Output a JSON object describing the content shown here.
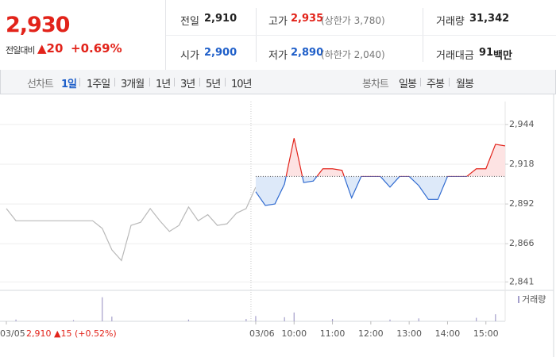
{
  "header": {
    "price": "2,930",
    "change_label": "전일대비",
    "change": "▲20",
    "change_rate": "+0.69%",
    "info": [
      {
        "label": "전일",
        "value": "2,910"
      },
      {
        "label": "고가",
        "value": "2,935",
        "note": "(상한가 3,780)"
      },
      {
        "label": "거래량",
        "value": "31,342"
      },
      {
        "label": "시가",
        "value": "2,900"
      },
      {
        "label": "저가",
        "value": "2,890",
        "note": "(하한가 2,040)"
      },
      {
        "label": "거래대금",
        "value": "91",
        "unit": "백만"
      }
    ]
  },
  "toolbar": {
    "line_label": "선차트",
    "periods": [
      "1일",
      "1주일",
      "3개월",
      "1년",
      "3년",
      "5년",
      "10년"
    ],
    "candle_label": "봉차트",
    "candles": [
      "일봉",
      "주봉",
      "월봉"
    ]
  },
  "chart_data": {
    "type": "line",
    "ylim": [
      2836,
      2959
    ],
    "yticks": [
      {
        "value": 2944,
        "label": "2,944"
      },
      {
        "value": 2918,
        "label": "2,918"
      },
      {
        "value": 2892,
        "label": "2,892"
      },
      {
        "value": 2866,
        "label": "2,866"
      },
      {
        "value": 2841,
        "label": "2,841"
      }
    ],
    "xticks": [
      {
        "value": "03/05 09:00",
        "label": "03/05"
      },
      {
        "value": "03/06 09:00",
        "label": "03/06"
      },
      {
        "value": "03/06 10:00",
        "label": "10:00"
      },
      {
        "value": "03/06 11:00",
        "label": "11:00"
      },
      {
        "value": "03/06 12:00",
        "label": "12:00"
      },
      {
        "value": "03/06 13:00",
        "label": "13:00"
      },
      {
        "value": "03/06 14:00",
        "label": "14:00"
      },
      {
        "value": "03/06 15:00",
        "label": "15:00"
      }
    ],
    "grid": true,
    "baseline": 2910,
    "annotation": "2,910 ▲15 (+0.52%)",
    "series": [
      {
        "color": "#b9b9b9",
        "x": [
          "03/05 09:00",
          "03/05 09:15",
          "03/05 09:30",
          "03/05 09:45",
          "03/05 10:00",
          "03/05 10:15",
          "03/05 10:30",
          "03/05 10:45",
          "03/05 11:00",
          "03/05 11:15",
          "03/05 11:30",
          "03/05 11:45",
          "03/05 12:00",
          "03/05 12:15",
          "03/05 12:30",
          "03/05 12:45",
          "03/05 13:00",
          "03/05 13:15",
          "03/05 13:30",
          "03/05 13:45",
          "03/05 14:00",
          "03/05 14:15",
          "03/05 14:30",
          "03/05 14:45",
          "03/05 15:00",
          "03/05 15:15",
          "03/05 15:30"
        ],
        "values": [
          2889,
          2881,
          2881,
          2881,
          2881,
          2881,
          2881,
          2881,
          2881,
          2881,
          2876,
          2862,
          2855,
          2878,
          2880,
          2889,
          2881,
          2874,
          2878,
          2890,
          2881,
          2885,
          2878,
          2879,
          2886,
          2889,
          2903
        ]
      },
      {
        "up_color": "#e2231a",
        "down_color": "#2f6ad0",
        "up_fill": "#fde3e3",
        "down_fill": "#dde9f9",
        "x": [
          "03/06 09:00",
          "03/06 09:15",
          "03/06 09:30",
          "03/06 09:45",
          "03/06 10:00",
          "03/06 10:15",
          "03/06 10:30",
          "03/06 10:45",
          "03/06 11:00",
          "03/06 11:15",
          "03/06 11:30",
          "03/06 11:45",
          "03/06 12:00",
          "03/06 12:15",
          "03/06 12:30",
          "03/06 12:45",
          "03/06 13:00",
          "03/06 13:15",
          "03/06 13:30",
          "03/06 13:45",
          "03/06 14:00",
          "03/06 14:15",
          "03/06 14:30",
          "03/06 14:45",
          "03/06 15:00",
          "03/06 15:15",
          "03/06 15:30"
        ],
        "values": [
          2900,
          2891,
          2892,
          2905,
          2935,
          2906,
          2907,
          2915,
          2915,
          2914,
          2896,
          2910,
          2910,
          2910,
          2903,
          2910,
          2910,
          2904,
          2895,
          2895,
          2910,
          2910,
          2910,
          2915,
          2915,
          2931,
          2930
        ]
      }
    ],
    "volume": {
      "name": "거래량",
      "color": "#a49fcb",
      "ylim": [
        0,
        5000
      ],
      "x": [
        "03/05 09:15",
        "03/05 10:45",
        "03/05 11:30",
        "03/05 11:45",
        "03/05 13:45",
        "03/05 15:15",
        "03/06 09:00",
        "03/06 09:45",
        "03/06 10:00",
        "03/06 11:00",
        "03/06 12:30",
        "03/06 13:15",
        "03/06 14:45",
        "03/06 15:15"
      ],
      "values": [
        300,
        200,
        4100,
        800,
        300,
        400,
        900,
        700,
        1500,
        400,
        300,
        500,
        600,
        1200
      ]
    }
  }
}
